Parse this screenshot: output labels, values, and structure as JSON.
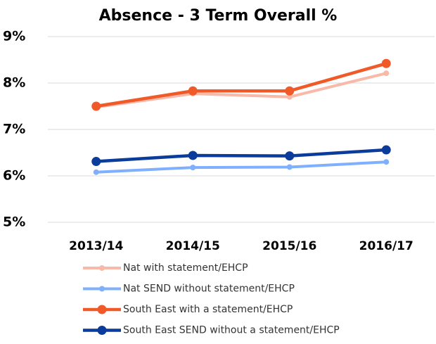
{
  "chart_data": {
    "type": "line",
    "title": "Absence - 3 Term Overall %",
    "categories": [
      "2013/14",
      "2014/15",
      "2015/16",
      "2016/17"
    ],
    "series": [
      {
        "name": "Nat with statement/EHCP",
        "color": "#f8b9a9",
        "values": [
          7.48,
          7.77,
          7.7,
          8.21
        ]
      },
      {
        "name": "Nat SEND without statement/EHCP",
        "color": "#7fb0ff",
        "values": [
          6.08,
          6.18,
          6.19,
          6.3
        ]
      },
      {
        "name": "South East with a statement/EHCP",
        "color": "#f05a28",
        "values": [
          7.5,
          7.83,
          7.83,
          8.42
        ]
      },
      {
        "name": "South East SEND without a statement/EHCP",
        "color": "#0b3c9c",
        "values": [
          6.31,
          6.44,
          6.43,
          6.56
        ]
      }
    ],
    "ylim": [
      5,
      9
    ],
    "yticks": [
      {
        "value": 5,
        "label": "5%"
      },
      {
        "value": 6,
        "label": "6%"
      },
      {
        "value": 7,
        "label": "7%"
      },
      {
        "value": 8,
        "label": "8%"
      },
      {
        "value": 9,
        "label": "9%"
      }
    ],
    "grid": true
  }
}
